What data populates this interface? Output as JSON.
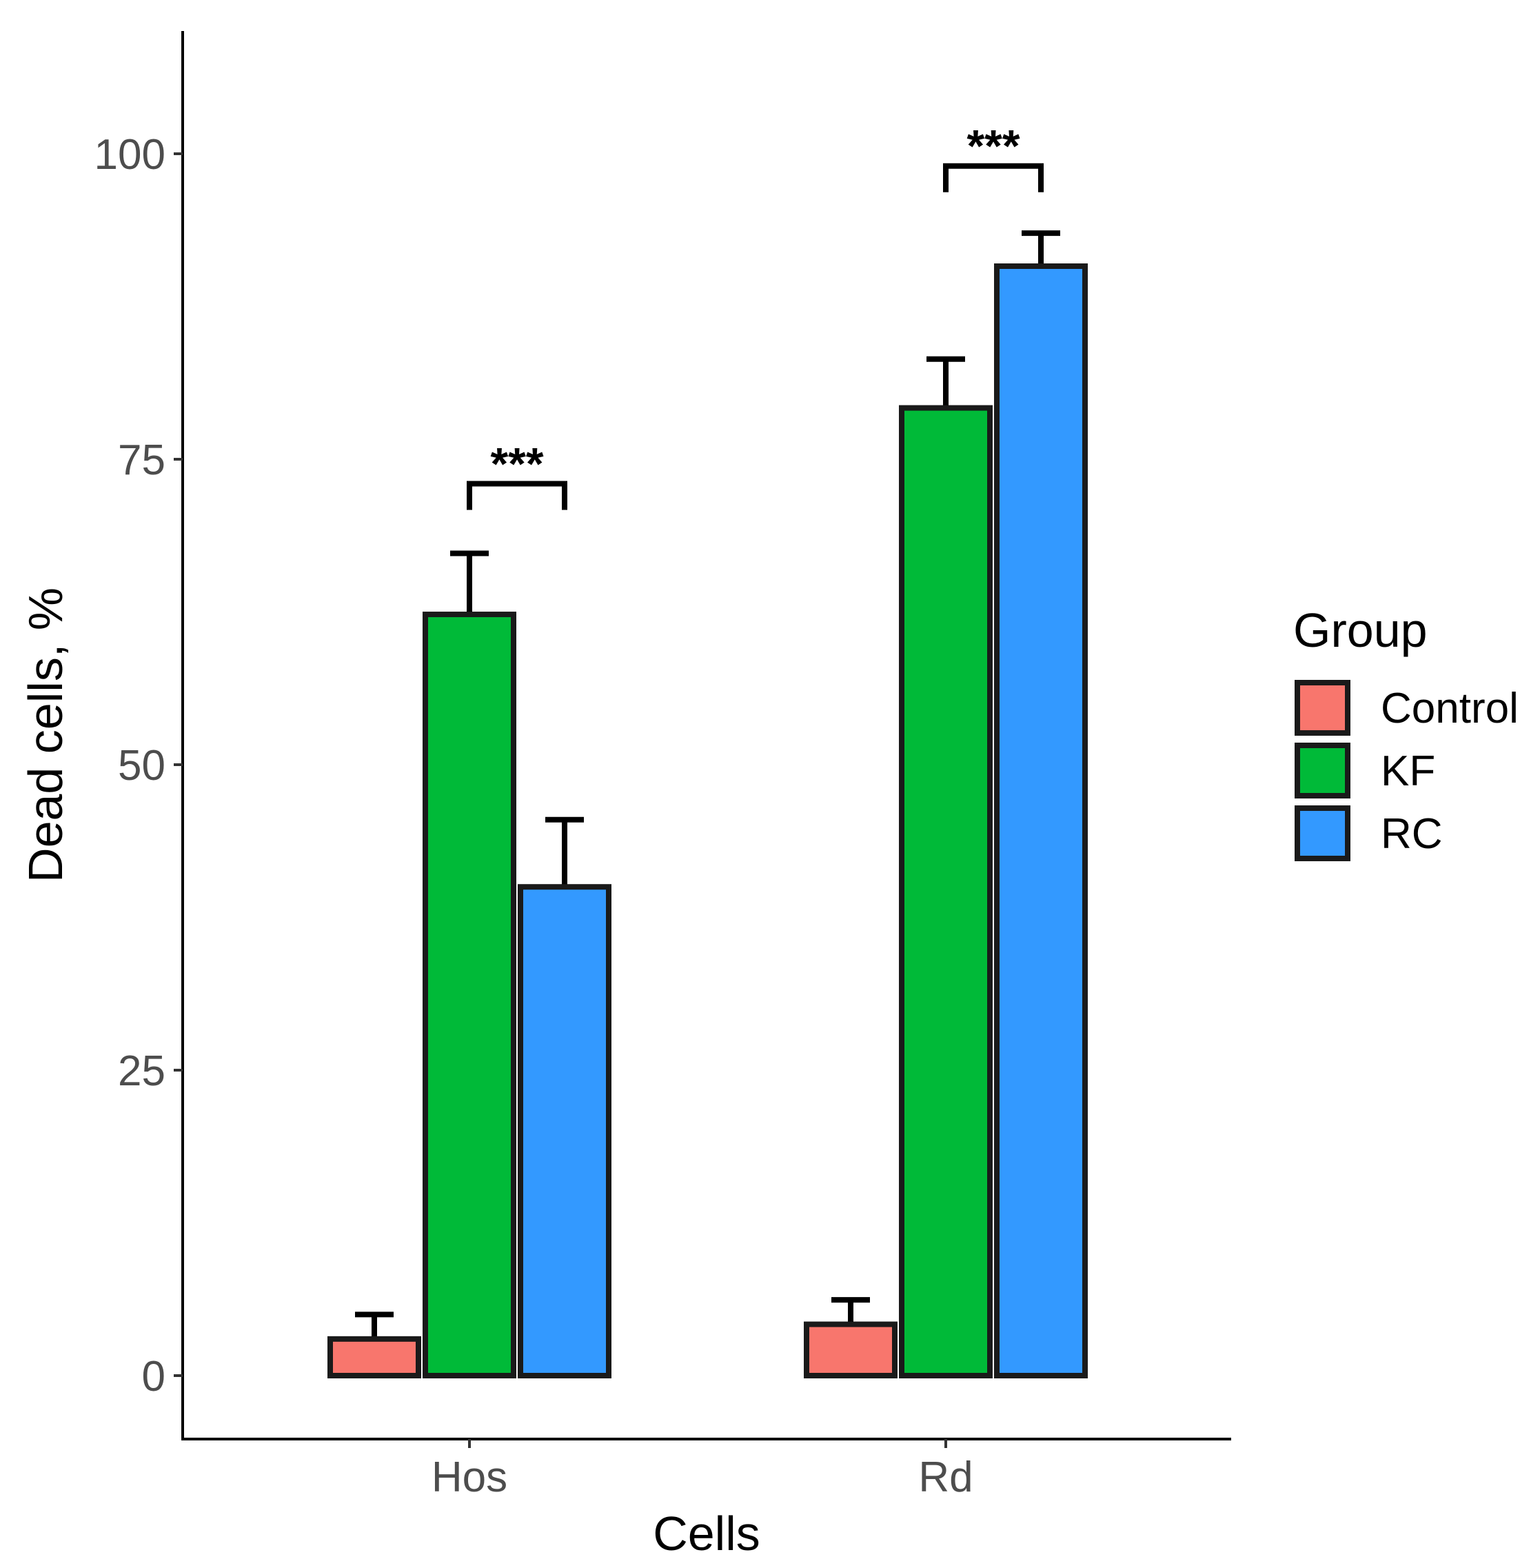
{
  "chart_data": {
    "type": "bar",
    "xlabel": "Cells",
    "ylabel": "Dead cells, %",
    "categories": [
      "Hos",
      "Rd"
    ],
    "yticks": [
      "0",
      "25",
      "50",
      "75",
      "100"
    ],
    "ylim": [
      -5,
      111
    ],
    "grid": false,
    "legend": {
      "title": "Group",
      "position": "right"
    },
    "series": [
      {
        "name": "Control",
        "color": "#F8766D",
        "values": [
          3,
          4.2
        ],
        "errors": [
          2,
          2
        ]
      },
      {
        "name": "KF",
        "color": "#00BA38",
        "values": [
          62.3,
          79.2
        ],
        "errors": [
          5,
          4
        ]
      },
      {
        "name": "RC",
        "color": "#3399FF",
        "values": [
          40,
          90.8
        ],
        "errors": [
          5.5,
          2.7
        ]
      }
    ],
    "annotations": [
      {
        "category": "Hos",
        "label": "***",
        "between": [
          "KF",
          "RC"
        ],
        "y": 73
      },
      {
        "category": "Rd",
        "label": "***",
        "between": [
          "KF",
          "RC"
        ],
        "y": 99
      }
    ]
  }
}
